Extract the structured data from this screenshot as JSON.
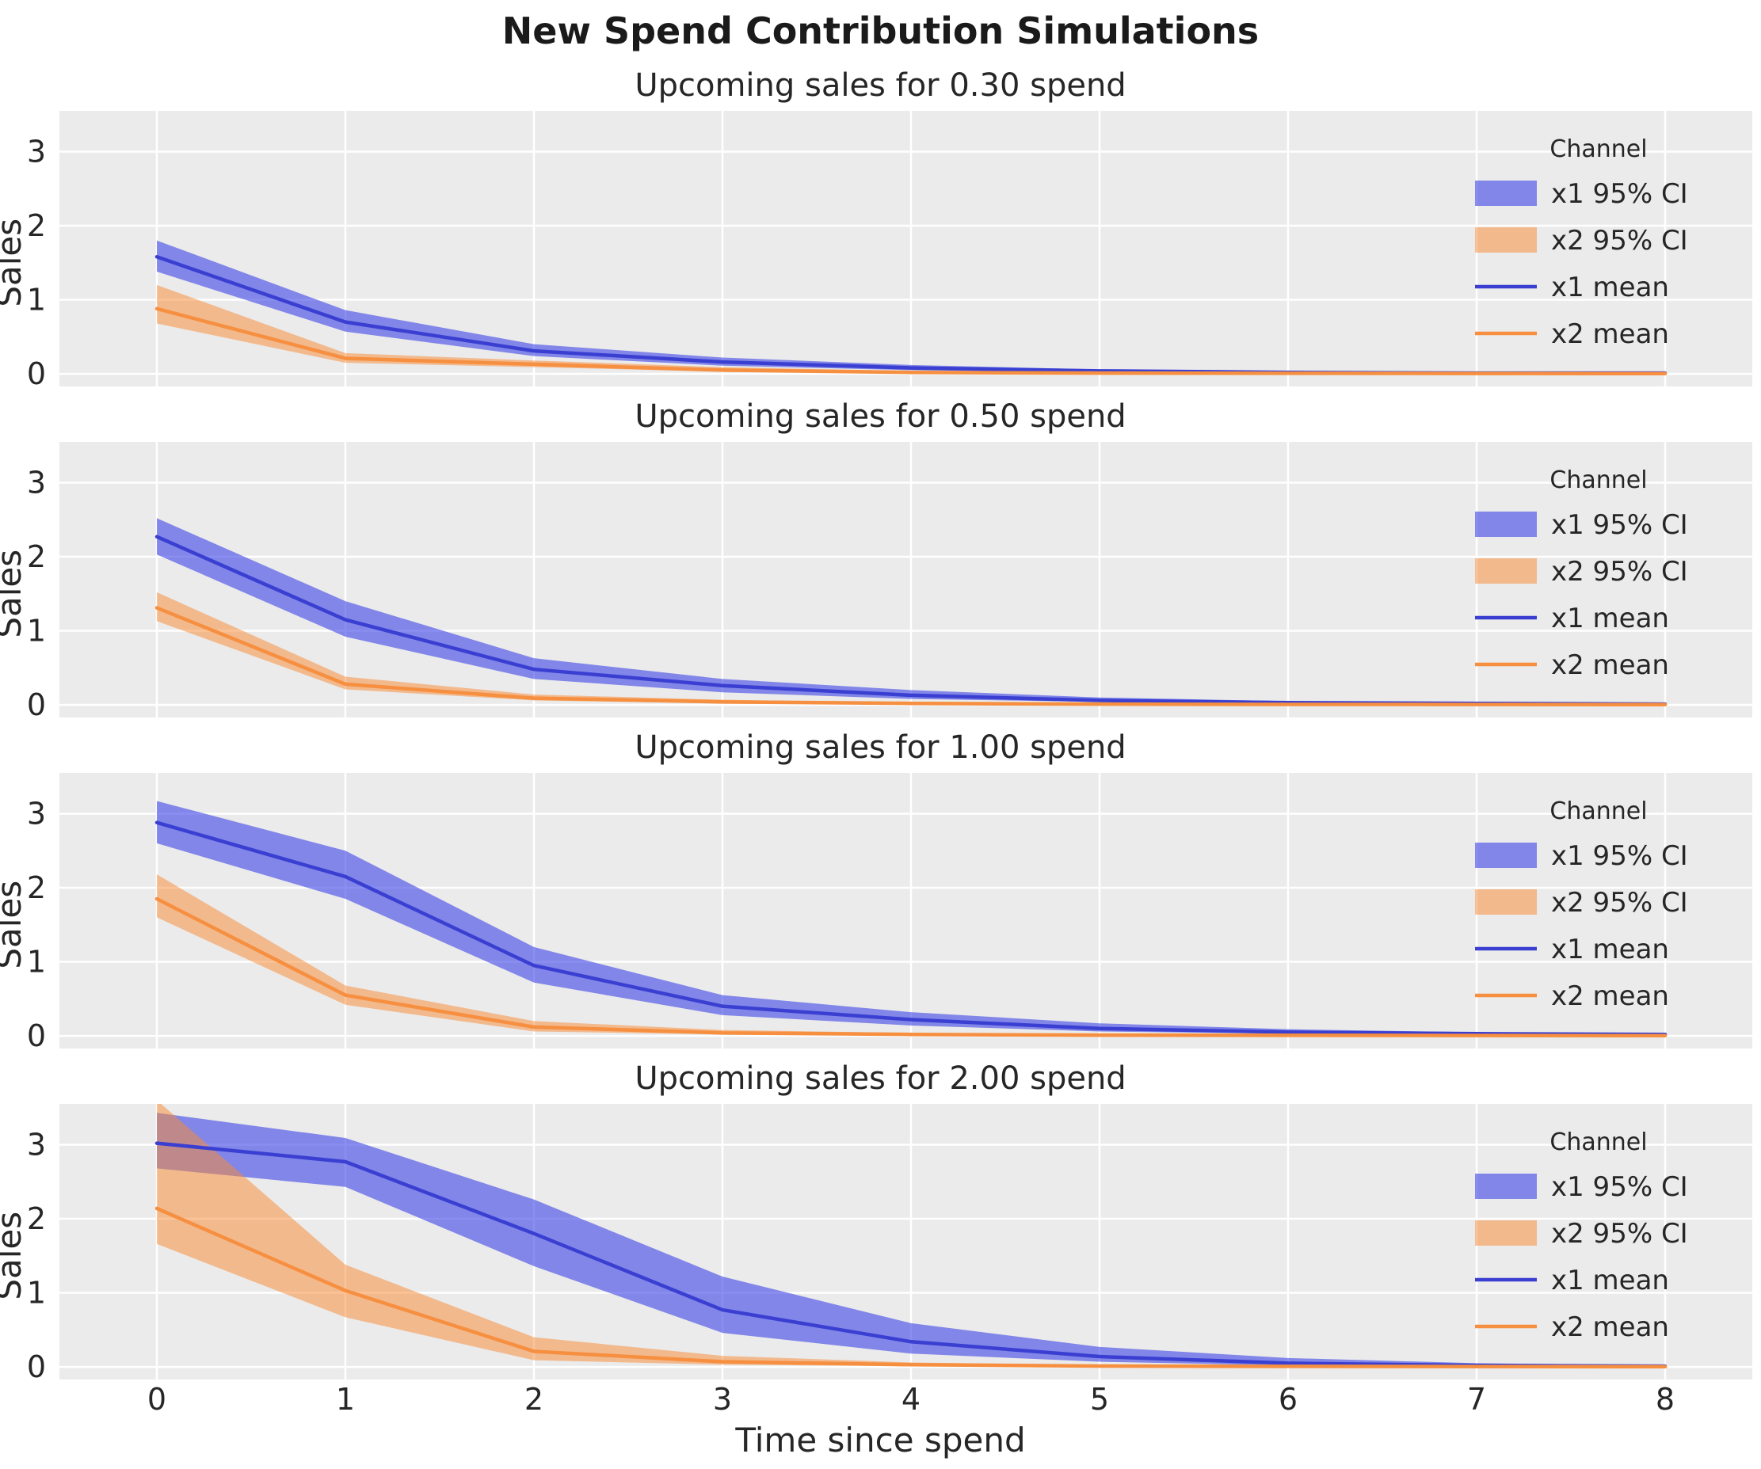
{
  "figure": {
    "title": "New Spend Contribution Simulations",
    "xlabel": "Time since spend",
    "ylabel": "Sales"
  },
  "legend": {
    "title": "Channel",
    "entries": [
      {
        "label": "x1 95% CI",
        "type": "patch",
        "channel": "x1"
      },
      {
        "label": "x2 95% CI",
        "type": "patch",
        "channel": "x2"
      },
      {
        "label": "x1 mean",
        "type": "line",
        "channel": "x1"
      },
      {
        "label": "x2 mean",
        "type": "line",
        "channel": "x2"
      }
    ]
  },
  "colors": {
    "plot_bg": "#ebebeb",
    "grid": "#ffffff",
    "text": "#262626",
    "x1_line": "#3a3fd2",
    "x1_band": "rgba(64,72,230,0.62)",
    "x2_line": "#f68f40",
    "x2_band": "rgba(250,140,55,0.52)"
  },
  "axes": {
    "xticks": [
      0,
      1,
      2,
      3,
      4,
      5,
      6,
      7,
      8
    ],
    "yticks": [
      0,
      1,
      2,
      3
    ],
    "xlim": [
      -0.52,
      8.46
    ],
    "ylim": [
      -0.17,
      3.55
    ]
  },
  "chart_data": [
    {
      "type": "area",
      "title": "Upcoming sales for 0.30 spend",
      "ylabel": "Sales",
      "x": [
        0,
        1,
        2,
        3,
        4,
        5,
        6,
        7,
        8
      ],
      "series": [
        {
          "name": "x1 mean",
          "channel": "x1",
          "mean": [
            1.58,
            0.7,
            0.31,
            0.16,
            0.08,
            0.04,
            0.02,
            0.01,
            0.01
          ],
          "ci_lo": [
            1.38,
            0.57,
            0.24,
            0.11,
            0.05,
            0.02,
            0.01,
            0.005,
            0.003
          ],
          "ci_hi": [
            1.8,
            0.86,
            0.4,
            0.22,
            0.12,
            0.06,
            0.03,
            0.02,
            0.012
          ]
        },
        {
          "name": "x2 mean",
          "channel": "x2",
          "mean": [
            0.88,
            0.21,
            0.13,
            0.05,
            0.02,
            0.01,
            0.008,
            0.005,
            0.004
          ],
          "ci_lo": [
            0.68,
            0.15,
            0.09,
            0.03,
            0.01,
            0.004,
            0.003,
            0.002,
            0.002
          ],
          "ci_hi": [
            1.2,
            0.28,
            0.18,
            0.09,
            0.04,
            0.02,
            0.013,
            0.01,
            0.008
          ]
        }
      ]
    },
    {
      "type": "area",
      "title": "Upcoming sales for 0.50 spend",
      "ylabel": "Sales",
      "x": [
        0,
        1,
        2,
        3,
        4,
        5,
        6,
        7,
        8
      ],
      "series": [
        {
          "name": "x1 mean",
          "channel": "x1",
          "mean": [
            2.27,
            1.15,
            0.48,
            0.26,
            0.13,
            0.06,
            0.03,
            0.02,
            0.01
          ],
          "ci_lo": [
            2.03,
            0.92,
            0.35,
            0.17,
            0.08,
            0.04,
            0.02,
            0.01,
            0.005
          ],
          "ci_hi": [
            2.52,
            1.4,
            0.63,
            0.35,
            0.2,
            0.1,
            0.05,
            0.03,
            0.02
          ]
        },
        {
          "name": "x2 mean",
          "channel": "x2",
          "mean": [
            1.31,
            0.28,
            0.09,
            0.04,
            0.02,
            0.01,
            0.007,
            0.005,
            0.004
          ],
          "ci_lo": [
            1.13,
            0.21,
            0.06,
            0.02,
            0.01,
            0.004,
            0.003,
            0.002,
            0.002
          ],
          "ci_hi": [
            1.52,
            0.38,
            0.14,
            0.07,
            0.03,
            0.02,
            0.012,
            0.009,
            0.008
          ]
        }
      ]
    },
    {
      "type": "area",
      "title": "Upcoming sales for 1.00 spend",
      "ylabel": "Sales",
      "x": [
        0,
        1,
        2,
        3,
        4,
        5,
        6,
        7,
        8
      ],
      "series": [
        {
          "name": "x1 mean",
          "channel": "x1",
          "mean": [
            2.88,
            2.15,
            0.95,
            0.4,
            0.22,
            0.1,
            0.05,
            0.03,
            0.02
          ],
          "ci_lo": [
            2.6,
            1.85,
            0.72,
            0.28,
            0.14,
            0.06,
            0.03,
            0.02,
            0.01
          ],
          "ci_hi": [
            3.17,
            2.5,
            1.2,
            0.55,
            0.32,
            0.17,
            0.09,
            0.05,
            0.03
          ]
        },
        {
          "name": "x2 mean",
          "channel": "x2",
          "mean": [
            1.85,
            0.55,
            0.12,
            0.04,
            0.02,
            0.01,
            0.008,
            0.005,
            0.004
          ],
          "ci_lo": [
            1.6,
            0.42,
            0.06,
            0.02,
            0.01,
            0.004,
            0.003,
            0.002,
            0.002
          ],
          "ci_hi": [
            2.18,
            0.68,
            0.2,
            0.08,
            0.04,
            0.02,
            0.013,
            0.01,
            0.008
          ]
        }
      ]
    },
    {
      "type": "area",
      "title": "Upcoming sales for 2.00 spend",
      "ylabel": "Sales",
      "x": [
        0,
        1,
        2,
        3,
        4,
        5,
        6,
        7,
        8
      ],
      "series": [
        {
          "name": "x1 mean",
          "channel": "x1",
          "mean": [
            3.02,
            2.77,
            1.8,
            0.77,
            0.34,
            0.14,
            0.05,
            0.02,
            0.01
          ],
          "ci_lo": [
            2.68,
            2.43,
            1.36,
            0.46,
            0.18,
            0.07,
            0.02,
            0.01,
            0.006
          ],
          "ci_hi": [
            3.43,
            3.09,
            2.26,
            1.22,
            0.59,
            0.27,
            0.12,
            0.05,
            0.025
          ]
        },
        {
          "name": "x2 mean",
          "channel": "x2",
          "mean": [
            2.14,
            1.03,
            0.21,
            0.07,
            0.03,
            0.012,
            0.008,
            0.005,
            0.004
          ],
          "ci_lo": [
            1.66,
            0.67,
            0.09,
            0.03,
            0.01,
            0.004,
            0.003,
            0.002,
            0.002
          ],
          "ci_hi": [
            3.6,
            1.38,
            0.4,
            0.15,
            0.06,
            0.025,
            0.015,
            0.01,
            0.008
          ]
        }
      ]
    }
  ]
}
